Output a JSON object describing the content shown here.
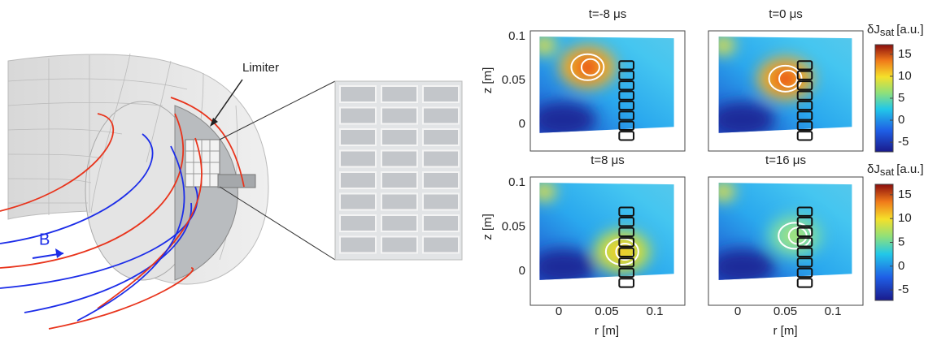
{
  "diagram": {
    "limiter_label": "Limiter",
    "field_label": "B"
  },
  "panels": [
    {
      "title": "t=-8 μs"
    },
    {
      "title": "t=0 μs"
    },
    {
      "title": "t=8 μs"
    },
    {
      "title": "t=16 μs"
    }
  ],
  "y_axis_label": "z [m]",
  "x_axis_label": "r [m]",
  "yticks": [
    "0.1",
    "0.05",
    "0"
  ],
  "xticks": [
    "0",
    "0.05",
    "0.1"
  ],
  "colorbar": {
    "label": "δJ",
    "subscript": "sat",
    "unit": "[a.u.]",
    "ticks": [
      "15",
      "10",
      "5",
      "0",
      "-5"
    ]
  }
}
